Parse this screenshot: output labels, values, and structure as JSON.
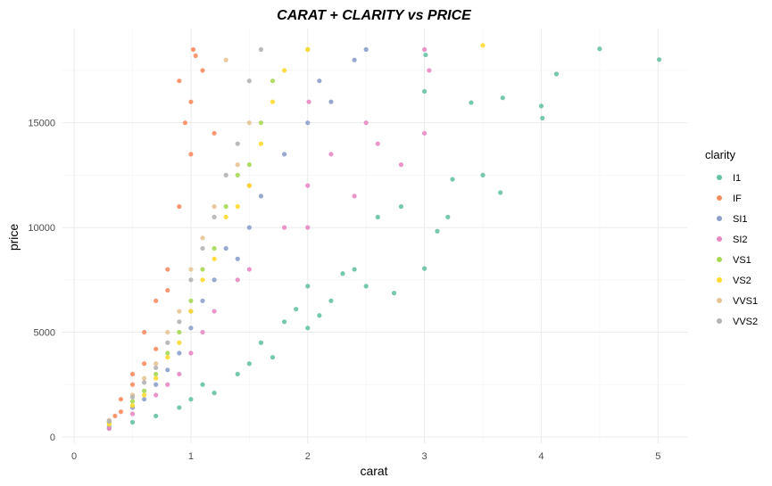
{
  "chart_data": {
    "type": "scatter",
    "title": "CARAT + CLARITY vs PRICE",
    "xlabel": "carat",
    "ylabel": "price",
    "xlim": [
      -0.1,
      5.25
    ],
    "ylim": [
      -300,
      19500
    ],
    "x_ticks": [
      0,
      1,
      2,
      3,
      4,
      5
    ],
    "y_ticks": [
      0,
      5000,
      10000,
      15000
    ],
    "x_tick_labels": [
      "0",
      "1",
      "2",
      "3",
      "4",
      "5"
    ],
    "y_tick_labels": [
      "0",
      "5000",
      "10000",
      "15000"
    ],
    "grid": true,
    "legend": {
      "title": "clarity",
      "position": "right"
    },
    "series": [
      {
        "name": "I1",
        "color": "#66C2A5",
        "points": [
          [
            3.01,
            18242
          ],
          [
            3.4,
            15964
          ],
          [
            3.65,
            11668
          ],
          [
            4.01,
            15223
          ],
          [
            4.13,
            17329
          ],
          [
            4.5,
            18531
          ],
          [
            5.01,
            18018
          ],
          [
            3.11,
            9823
          ],
          [
            2.74,
            6870
          ],
          [
            2.5,
            7200
          ],
          [
            3.0,
            8040
          ],
          [
            2.2,
            6500
          ],
          [
            2.1,
            5800
          ],
          [
            2.0,
            5200
          ],
          [
            1.9,
            6100
          ],
          [
            1.8,
            5500
          ],
          [
            1.5,
            3500
          ],
          [
            1.4,
            3000
          ],
          [
            1.2,
            2100
          ],
          [
            1.1,
            2500
          ],
          [
            1.0,
            1800
          ],
          [
            0.9,
            1400
          ],
          [
            0.7,
            1000
          ],
          [
            0.5,
            700
          ],
          [
            0.3,
            400
          ],
          [
            2.3,
            7800
          ],
          [
            3.2,
            10500
          ],
          [
            2.8,
            11000
          ],
          [
            3.5,
            12500
          ],
          [
            3.24,
            12300
          ],
          [
            3.67,
            16193
          ],
          [
            3.0,
            16500
          ],
          [
            4.0,
            15800
          ],
          [
            2.4,
            8000
          ],
          [
            1.6,
            4500
          ],
          [
            2.0,
            7200
          ],
          [
            2.6,
            10500
          ],
          [
            1.7,
            3800
          ]
        ]
      },
      {
        "name": "IF",
        "color": "#FC8D62",
        "points": [
          [
            0.3,
            700
          ],
          [
            0.4,
            1800
          ],
          [
            0.5,
            3000
          ],
          [
            0.6,
            5000
          ],
          [
            0.7,
            6500
          ],
          [
            0.8,
            8000
          ],
          [
            0.9,
            11000
          ],
          [
            1.0,
            13500
          ],
          [
            1.0,
            16000
          ],
          [
            1.02,
            18500
          ],
          [
            1.1,
            17500
          ],
          [
            1.2,
            14500
          ],
          [
            0.95,
            15000
          ],
          [
            1.04,
            18200
          ],
          [
            0.9,
            17000
          ],
          [
            0.7,
            4200
          ],
          [
            0.5,
            2500
          ],
          [
            1.5,
            12000
          ],
          [
            0.8,
            7000
          ],
          [
            0.6,
            3500
          ],
          [
            0.4,
            1200
          ],
          [
            0.35,
            1000
          ]
        ]
      },
      {
        "name": "SI1",
        "color": "#8DA0CB",
        "points": [
          [
            0.3,
            500
          ],
          [
            0.5,
            1400
          ],
          [
            0.7,
            2500
          ],
          [
            0.9,
            4000
          ],
          [
            1.0,
            5200
          ],
          [
            1.1,
            6500
          ],
          [
            1.2,
            7500
          ],
          [
            1.5,
            10000
          ],
          [
            2.0,
            15000
          ],
          [
            2.5,
            18500
          ],
          [
            1.0,
            6000
          ],
          [
            1.3,
            9000
          ],
          [
            1.8,
            13500
          ],
          [
            2.1,
            17000
          ],
          [
            0.8,
            3200
          ],
          [
            1.6,
            11500
          ],
          [
            2.2,
            16000
          ],
          [
            2.4,
            18000
          ],
          [
            1.4,
            8500
          ],
          [
            0.6,
            1800
          ]
        ]
      },
      {
        "name": "SI2",
        "color": "#E78AC3",
        "points": [
          [
            0.3,
            400
          ],
          [
            0.5,
            1100
          ],
          [
            0.7,
            2000
          ],
          [
            0.9,
            3000
          ],
          [
            1.0,
            4000
          ],
          [
            1.2,
            6000
          ],
          [
            1.5,
            8000
          ],
          [
            2.0,
            12000
          ],
          [
            2.5,
            15000
          ],
          [
            3.0,
            18500
          ],
          [
            1.1,
            5000
          ],
          [
            1.8,
            10000
          ],
          [
            2.2,
            13500
          ],
          [
            2.6,
            14000
          ],
          [
            2.01,
            16000
          ],
          [
            3.04,
            17500
          ],
          [
            2.8,
            13000
          ],
          [
            3.0,
            14500
          ],
          [
            2.4,
            11500
          ],
          [
            1.4,
            7500
          ],
          [
            2.0,
            10000
          ],
          [
            0.8,
            2500
          ]
        ]
      },
      {
        "name": "VS1",
        "color": "#A6D854",
        "points": [
          [
            0.3,
            700
          ],
          [
            0.5,
            1700
          ],
          [
            0.7,
            3000
          ],
          [
            0.9,
            5000
          ],
          [
            1.0,
            6500
          ],
          [
            1.2,
            9000
          ],
          [
            1.5,
            13000
          ],
          [
            1.7,
            17000
          ],
          [
            2.0,
            18500
          ],
          [
            1.1,
            8000
          ],
          [
            1.3,
            11000
          ],
          [
            0.8,
            4000
          ],
          [
            1.6,
            15000
          ],
          [
            1.4,
            12500
          ],
          [
            0.6,
            2200
          ]
        ]
      },
      {
        "name": "VS2",
        "color": "#FFD92F",
        "points": [
          [
            0.3,
            600
          ],
          [
            0.5,
            1500
          ],
          [
            0.7,
            2800
          ],
          [
            0.9,
            4500
          ],
          [
            1.0,
            6000
          ],
          [
            1.2,
            8500
          ],
          [
            1.5,
            12000
          ],
          [
            1.7,
            16000
          ],
          [
            2.0,
            18500
          ],
          [
            3.5,
            18700
          ],
          [
            1.1,
            7500
          ],
          [
            1.3,
            10500
          ],
          [
            1.6,
            14000
          ],
          [
            1.8,
            17500
          ],
          [
            0.8,
            3800
          ],
          [
            1.4,
            11000
          ],
          [
            0.6,
            2000
          ]
        ]
      },
      {
        "name": "VVS1",
        "color": "#E5C494",
        "points": [
          [
            0.3,
            800
          ],
          [
            0.5,
            2000
          ],
          [
            0.7,
            3500
          ],
          [
            0.9,
            6000
          ],
          [
            1.0,
            8000
          ],
          [
            1.2,
            11000
          ],
          [
            1.5,
            15000
          ],
          [
            1.3,
            18000
          ],
          [
            0.8,
            5000
          ],
          [
            1.1,
            9500
          ],
          [
            0.6,
            2800
          ],
          [
            1.4,
            13000
          ]
        ]
      },
      {
        "name": "VVS2",
        "color": "#B3B3B3",
        "points": [
          [
            0.3,
            750
          ],
          [
            0.5,
            1900
          ],
          [
            0.7,
            3300
          ],
          [
            0.9,
            5500
          ],
          [
            1.0,
            7500
          ],
          [
            1.2,
            10500
          ],
          [
            1.4,
            14000
          ],
          [
            1.5,
            17000
          ],
          [
            0.8,
            4500
          ],
          [
            1.1,
            9000
          ],
          [
            1.3,
            12500
          ],
          [
            0.6,
            2600
          ],
          [
            1.6,
            18500
          ]
        ]
      }
    ]
  }
}
